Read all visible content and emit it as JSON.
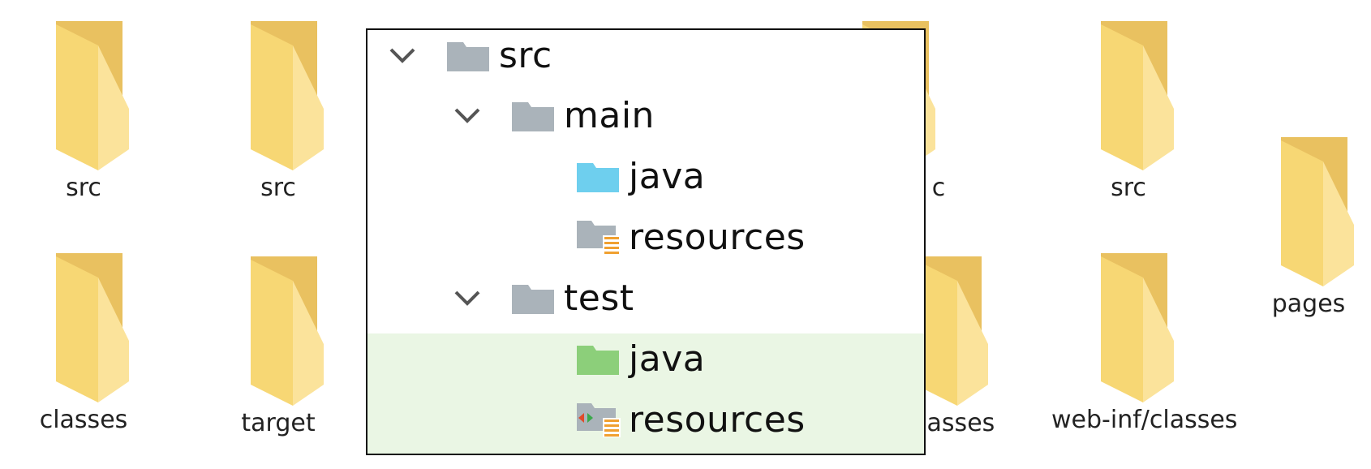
{
  "desktop": {
    "folders": [
      {
        "label": "src",
        "icon": "folder-icon"
      },
      {
        "label": "src",
        "icon": "folder-icon"
      },
      {
        "label": "c",
        "icon": "folder-icon"
      },
      {
        "label": "src",
        "icon": "folder-icon"
      },
      {
        "label": "pages",
        "icon": "folder-icon"
      },
      {
        "label": "classes",
        "icon": "folder-icon"
      },
      {
        "label": "target",
        "icon": "folder-icon"
      },
      {
        "label": "classes",
        "icon": "folder-icon"
      },
      {
        "label": "web-inf/classes",
        "icon": "folder-icon"
      }
    ]
  },
  "tree": {
    "nodes": [
      {
        "label": "src",
        "icon": "gray-folder-icon",
        "expanded": true
      },
      {
        "label": "main",
        "icon": "gray-folder-icon",
        "expanded": true
      },
      {
        "label": "java",
        "icon": "blue-source-folder-icon"
      },
      {
        "label": "resources",
        "icon": "resources-folder-icon"
      },
      {
        "label": "test",
        "icon": "gray-folder-icon",
        "expanded": true
      },
      {
        "label": "java",
        "icon": "green-test-folder-icon"
      },
      {
        "label": "resources",
        "icon": "test-resources-folder-icon"
      }
    ]
  },
  "colors": {
    "desktop_folder": "#f7d774",
    "tree_folder": "#aab3ba",
    "source_folder": "#6ecfee",
    "test_folder": "#8ccf7a",
    "selection_bg": "#eaf6e4",
    "resource_lines": "#f0a030"
  }
}
